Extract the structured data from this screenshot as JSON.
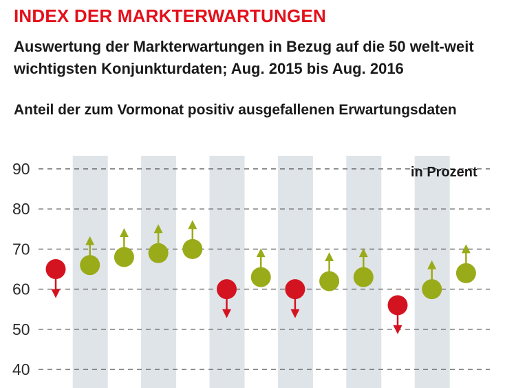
{
  "header": {
    "title": "INDEX DER MARKTERWARTUNGEN",
    "subtitle": "Auswertung der Markterwartungen in Bezug auf die 50 welt-weit wichtigsten Konjunkturdaten; Aug. 2015 bis Aug. 2016",
    "description": "Anteil der zum Vormonat positiv ausgefallenen Erwartungsdaten"
  },
  "colors": {
    "title": "#e3101b",
    "up": "#9aab1a",
    "down": "#d41320",
    "band": "#dfe4e8"
  },
  "chart_data": {
    "type": "scatter",
    "unit_label": "in Prozent",
    "ylim": [
      40,
      90
    ],
    "yticks": [
      "40",
      "50",
      "60",
      "70",
      "80",
      "90"
    ],
    "grid": true,
    "points": [
      {
        "value": 65,
        "direction": "down"
      },
      {
        "value": 66,
        "direction": "up"
      },
      {
        "value": 68,
        "direction": "up"
      },
      {
        "value": 69,
        "direction": "up"
      },
      {
        "value": 70,
        "direction": "up"
      },
      {
        "value": 60,
        "direction": "down"
      },
      {
        "value": 63,
        "direction": "up"
      },
      {
        "value": 60,
        "direction": "down"
      },
      {
        "value": 62,
        "direction": "up"
      },
      {
        "value": 63,
        "direction": "up"
      },
      {
        "value": 56,
        "direction": "down"
      },
      {
        "value": 60,
        "direction": "up"
      },
      {
        "value": 64,
        "direction": "up"
      }
    ]
  }
}
